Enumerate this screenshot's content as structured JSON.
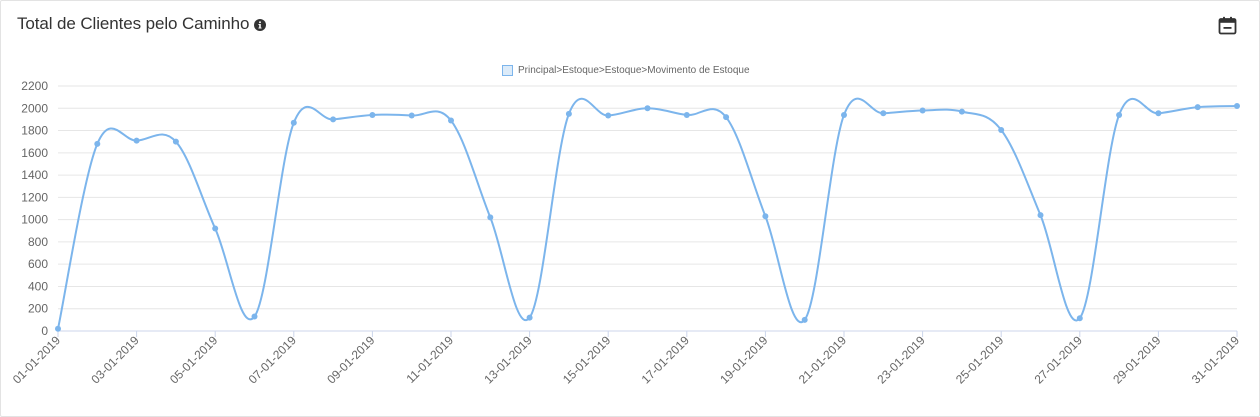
{
  "widget": {
    "title": "Total de Clientes pelo Caminho",
    "info_icon": "info-circle-icon",
    "calendar_icon": "calendar-icon"
  },
  "chart_data": {
    "type": "line",
    "title": "Total de Clientes pelo Caminho",
    "xlabel": "",
    "ylabel": "",
    "ylim": [
      0,
      2200
    ],
    "yticks": [
      0,
      200,
      400,
      600,
      800,
      1000,
      1200,
      1400,
      1600,
      1800,
      2000,
      2200
    ],
    "grid": true,
    "legend_position": "top-center",
    "x": [
      "01-01-2019",
      "02-01-2019",
      "03-01-2019",
      "04-01-2019",
      "05-01-2019",
      "06-01-2019",
      "07-01-2019",
      "08-01-2019",
      "09-01-2019",
      "10-01-2019",
      "11-01-2019",
      "12-01-2019",
      "13-01-2019",
      "14-01-2019",
      "15-01-2019",
      "16-01-2019",
      "17-01-2019",
      "18-01-2019",
      "19-01-2019",
      "20-01-2019",
      "21-01-2019",
      "22-01-2019",
      "23-01-2019",
      "24-01-2019",
      "25-01-2019",
      "26-01-2019",
      "27-01-2019",
      "28-01-2019",
      "29-01-2019",
      "30-01-2019",
      "31-01-2019"
    ],
    "x_tick_labels": [
      "01-01-2019",
      "03-01-2019",
      "05-01-2019",
      "07-01-2019",
      "09-01-2019",
      "11-01-2019",
      "13-01-2019",
      "15-01-2019",
      "17-01-2019",
      "19-01-2019",
      "21-01-2019",
      "23-01-2019",
      "25-01-2019",
      "27-01-2019",
      "29-01-2019",
      "31-01-2019"
    ],
    "series": [
      {
        "name": "Principal>Estoque>Estoque>Movimento de Estoque",
        "color": "#7cb5ec",
        "values": [
          20,
          1680,
          1710,
          1700,
          920,
          130,
          1870,
          1900,
          1940,
          1935,
          1890,
          1020,
          120,
          1950,
          1935,
          2000,
          1940,
          1920,
          1030,
          100,
          1940,
          1955,
          1980,
          1970,
          1805,
          1040,
          115,
          1940,
          1955,
          2010,
          2020
        ]
      }
    ]
  }
}
